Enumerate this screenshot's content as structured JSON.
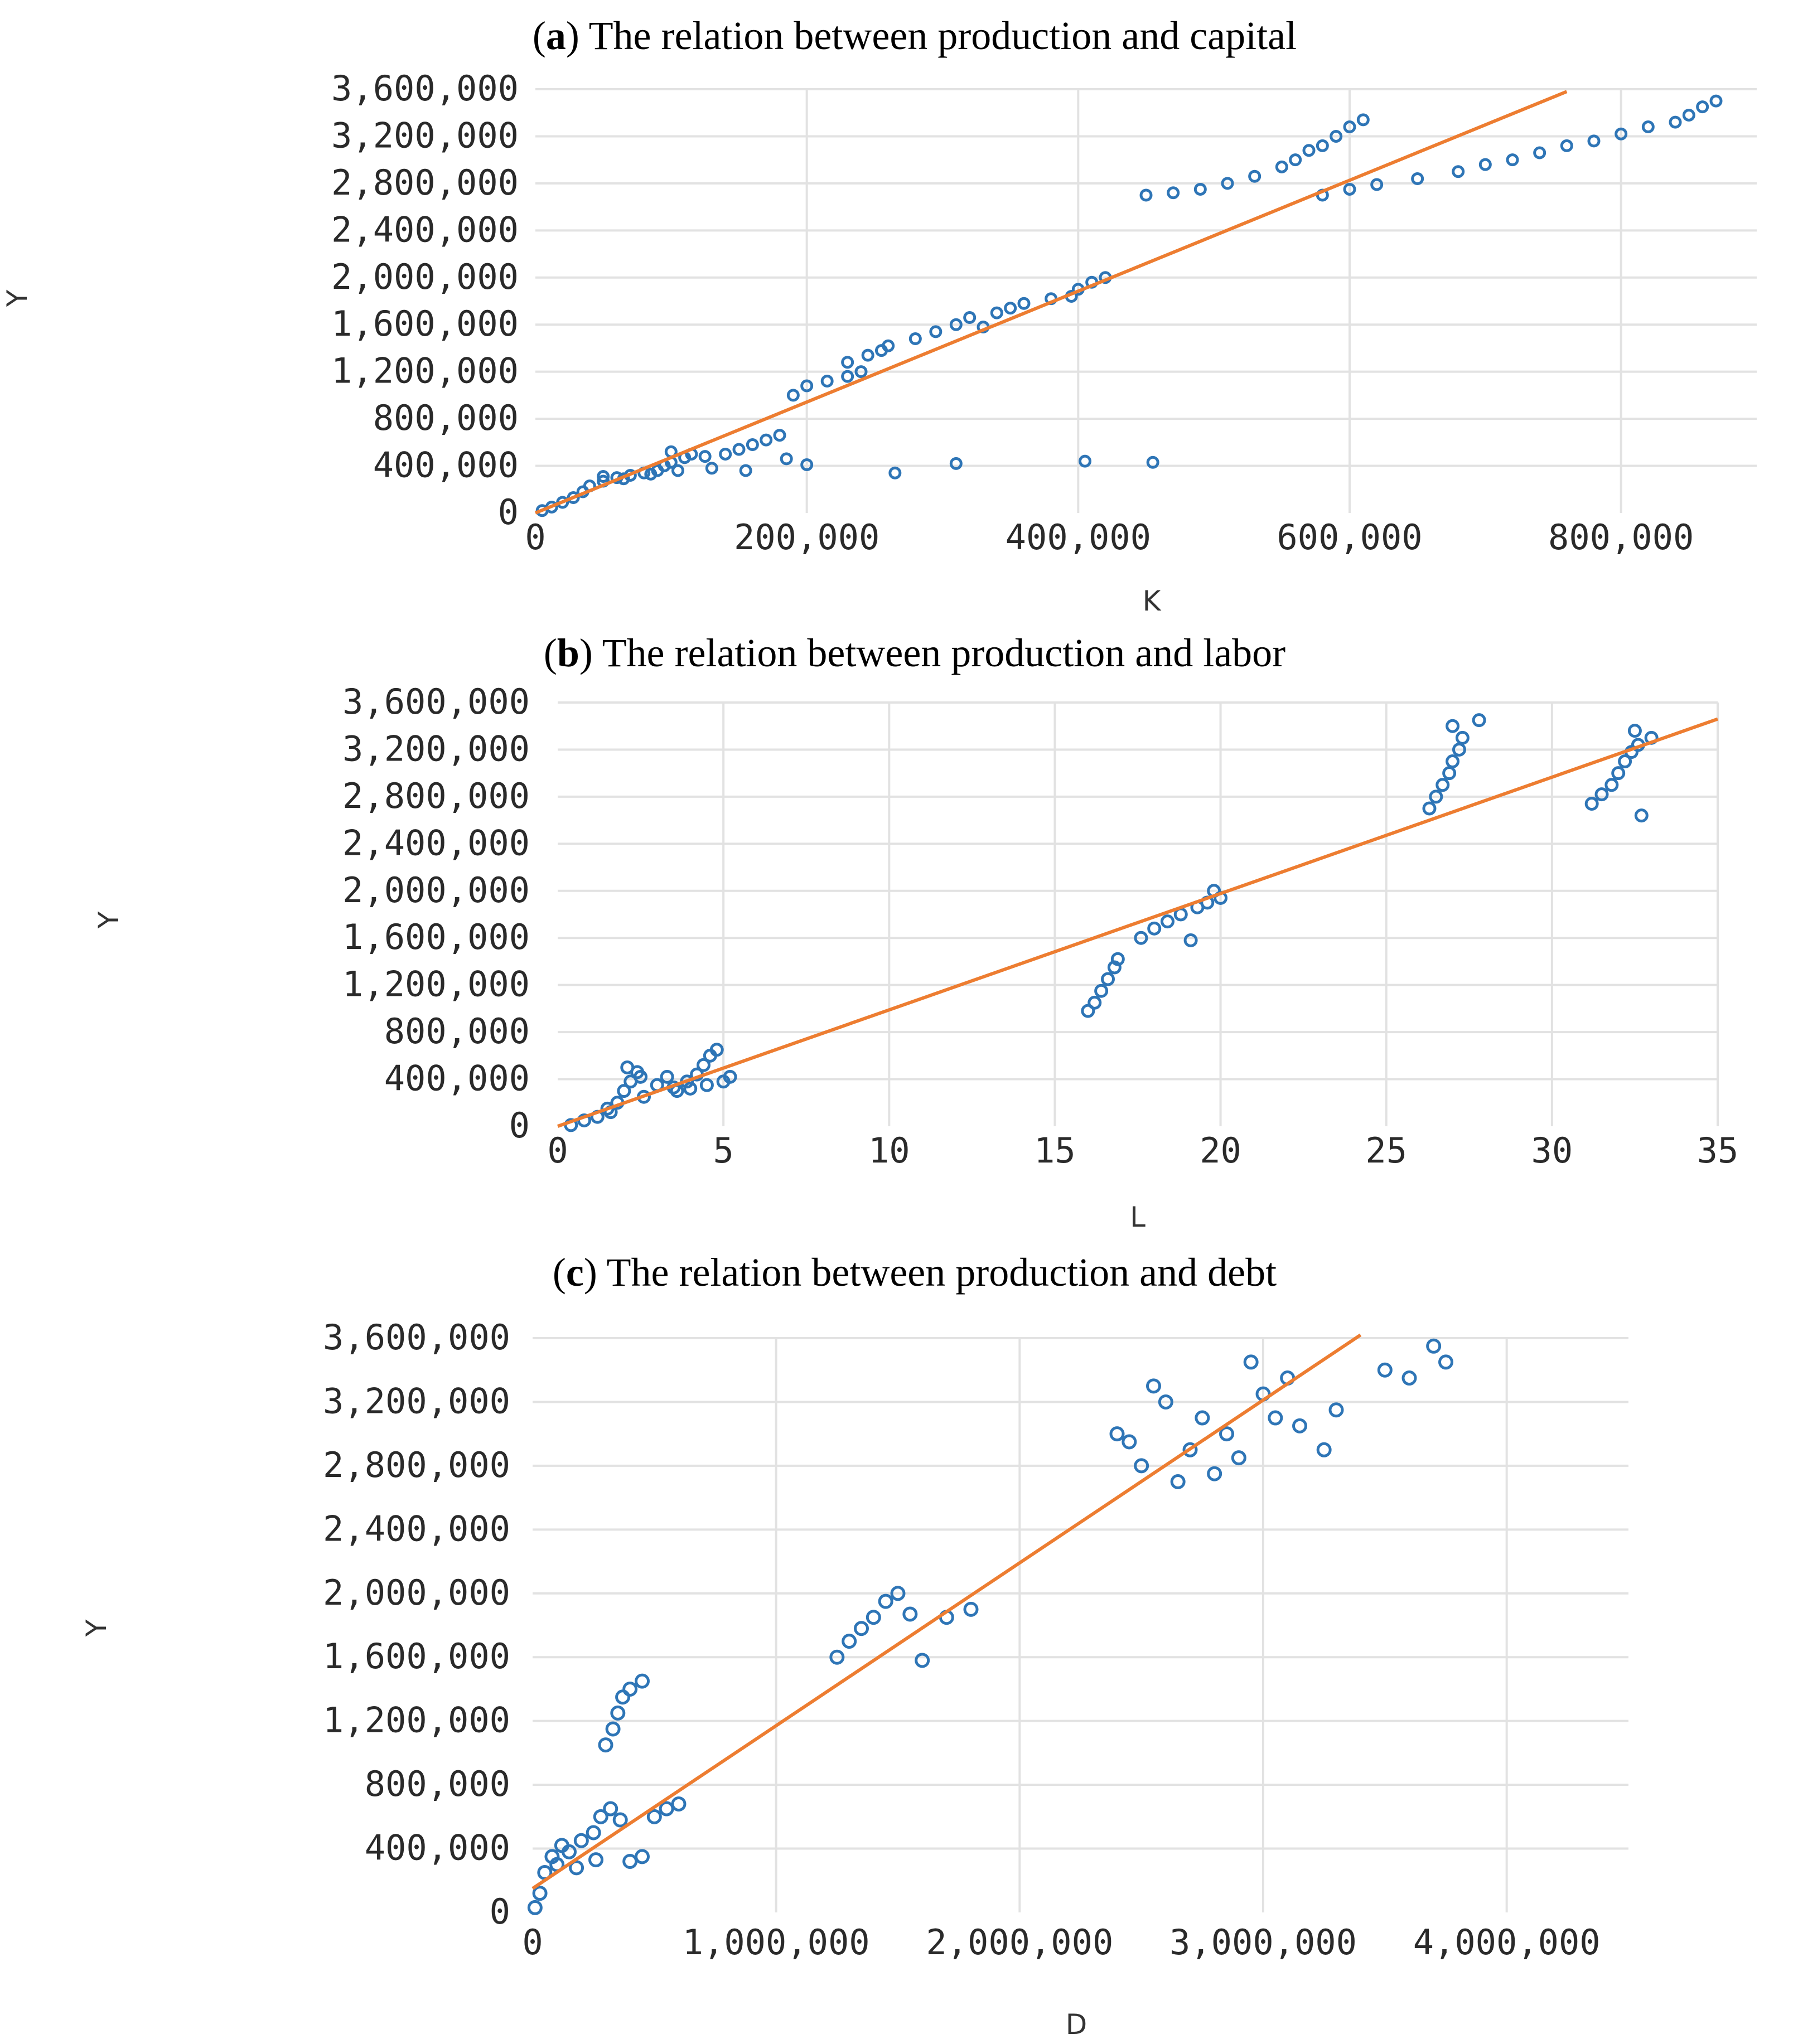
{
  "chart_data": [
    {
      "type": "scatter",
      "title_tag": "a",
      "title_text": "The relation between production and capital",
      "xlabel": "K",
      "ylabel": "Y",
      "xlim": [
        0,
        900000
      ],
      "ylim": [
        0,
        3600000
      ],
      "xticks": [
        0,
        200000,
        400000,
        600000,
        800000
      ],
      "xtick_labels": [
        "0",
        "200,000",
        "400,000",
        "600,000",
        "800,000"
      ],
      "yticks": [
        0,
        400000,
        800000,
        1200000,
        1600000,
        2000000,
        2400000,
        2800000,
        3200000,
        3600000
      ],
      "ytick_labels": [
        "0",
        "400,000",
        "800,000",
        "1,200,000",
        "1,600,000",
        "2,000,000",
        "2,400,000",
        "2,800,000",
        "3,200,000",
        "3,600,000"
      ],
      "grid": true,
      "series": [
        {
          "color": "#2e75b6",
          "marker": "open-circle",
          "points": [
            [
              5000,
              20000
            ],
            [
              12000,
              50000
            ],
            [
              20000,
              90000
            ],
            [
              28000,
              130000
            ],
            [
              35000,
              180000
            ],
            [
              40000,
              230000
            ],
            [
              50000,
              270000
            ],
            [
              60000,
              300000
            ],
            [
              70000,
              320000
            ],
            [
              80000,
              340000
            ],
            [
              90000,
              360000
            ],
            [
              95000,
              400000
            ],
            [
              100000,
              430000
            ],
            [
              110000,
              470000
            ],
            [
              115000,
              500000
            ],
            [
              100000,
              520000
            ],
            [
              125000,
              480000
            ],
            [
              140000,
              500000
            ],
            [
              150000,
              540000
            ],
            [
              160000,
              580000
            ],
            [
              170000,
              620000
            ],
            [
              180000,
              660000
            ],
            [
              50000,
              310000
            ],
            [
              65000,
              290000
            ],
            [
              85000,
              330000
            ],
            [
              105000,
              360000
            ],
            [
              130000,
              380000
            ],
            [
              155000,
              360000
            ],
            [
              185000,
              460000
            ],
            [
              200000,
              410000
            ],
            [
              265000,
              340000
            ],
            [
              310000,
              420000
            ],
            [
              405000,
              440000
            ],
            [
              455000,
              430000
            ],
            [
              190000,
              1000000
            ],
            [
              200000,
              1080000
            ],
            [
              215000,
              1120000
            ],
            [
              230000,
              1160000
            ],
            [
              240000,
              1200000
            ],
            [
              230000,
              1280000
            ],
            [
              245000,
              1340000
            ],
            [
              255000,
              1380000
            ],
            [
              260000,
              1420000
            ],
            [
              280000,
              1480000
            ],
            [
              295000,
              1540000
            ],
            [
              310000,
              1600000
            ],
            [
              320000,
              1660000
            ],
            [
              340000,
              1700000
            ],
            [
              350000,
              1740000
            ],
            [
              360000,
              1780000
            ],
            [
              380000,
              1820000
            ],
            [
              395000,
              1840000
            ],
            [
              400000,
              1900000
            ],
            [
              410000,
              1960000
            ],
            [
              420000,
              2000000
            ],
            [
              330000,
              1580000
            ],
            [
              450000,
              2700000
            ],
            [
              470000,
              2720000
            ],
            [
              490000,
              2750000
            ],
            [
              510000,
              2800000
            ],
            [
              530000,
              2860000
            ],
            [
              550000,
              2940000
            ],
            [
              560000,
              3000000
            ],
            [
              570000,
              3080000
            ],
            [
              580000,
              3120000
            ],
            [
              590000,
              3200000
            ],
            [
              600000,
              3280000
            ],
            [
              610000,
              3340000
            ],
            [
              580000,
              2700000
            ],
            [
              600000,
              2750000
            ],
            [
              620000,
              2790000
            ],
            [
              650000,
              2840000
            ],
            [
              680000,
              2900000
            ],
            [
              700000,
              2960000
            ],
            [
              720000,
              3000000
            ],
            [
              740000,
              3060000
            ],
            [
              760000,
              3120000
            ],
            [
              780000,
              3160000
            ],
            [
              800000,
              3220000
            ],
            [
              820000,
              3280000
            ],
            [
              840000,
              3320000
            ],
            [
              850000,
              3380000
            ],
            [
              860000,
              3450000
            ],
            [
              870000,
              3500000
            ]
          ]
        },
        {
          "color": "#ed7d31",
          "type": "line",
          "points": [
            [
              0,
              0
            ],
            [
              760000,
              3580000
            ]
          ]
        }
      ]
    },
    {
      "type": "scatter",
      "title_tag": "b",
      "title_text": "The relation between production and labor",
      "xlabel": "L",
      "ylabel": "Y",
      "xlim": [
        0,
        35
      ],
      "ylim": [
        0,
        3600000
      ],
      "xticks": [
        0,
        5,
        10,
        15,
        20,
        25,
        30,
        35
      ],
      "xtick_labels": [
        "0",
        "5",
        "10",
        "15",
        "20",
        "25",
        "30",
        "35"
      ],
      "yticks": [
        0,
        400000,
        800000,
        1200000,
        1600000,
        2000000,
        2400000,
        2800000,
        3200000,
        3600000
      ],
      "ytick_labels": [
        "0",
        "400,000",
        "800,000",
        "1,200,000",
        "1,600,000",
        "2,000,000",
        "2,400,000",
        "2,800,000",
        "3,200,000",
        "3,600,000"
      ],
      "grid": true,
      "series": [
        {
          "color": "#2e75b6",
          "marker": "open-circle",
          "points": [
            [
              0.4,
              10000
            ],
            [
              0.8,
              50000
            ],
            [
              1.2,
              80000
            ],
            [
              1.6,
              120000
            ],
            [
              1.8,
              200000
            ],
            [
              2.0,
              300000
            ],
            [
              2.2,
              380000
            ],
            [
              2.4,
              460000
            ],
            [
              2.1,
              500000
            ],
            [
              2.5,
              420000
            ],
            [
              3.0,
              350000
            ],
            [
              3.3,
              420000
            ],
            [
              3.6,
              300000
            ],
            [
              3.9,
              380000
            ],
            [
              4.2,
              440000
            ],
            [
              4.4,
              520000
            ],
            [
              4.6,
              600000
            ],
            [
              4.8,
              650000
            ],
            [
              5.0,
              380000
            ],
            [
              5.2,
              420000
            ],
            [
              3.5,
              330000
            ],
            [
              4.0,
              320000
            ],
            [
              4.5,
              350000
            ],
            [
              2.6,
              250000
            ],
            [
              1.5,
              150000
            ],
            [
              16.0,
              980000
            ],
            [
              16.2,
              1050000
            ],
            [
              16.4,
              1150000
            ],
            [
              16.6,
              1250000
            ],
            [
              16.8,
              1350000
            ],
            [
              16.9,
              1420000
            ],
            [
              17.6,
              1600000
            ],
            [
              18.0,
              1680000
            ],
            [
              18.4,
              1740000
            ],
            [
              18.8,
              1800000
            ],
            [
              19.1,
              1580000
            ],
            [
              19.3,
              1860000
            ],
            [
              19.6,
              1900000
            ],
            [
              19.8,
              2000000
            ],
            [
              20.0,
              1940000
            ],
            [
              26.3,
              2700000
            ],
            [
              26.5,
              2800000
            ],
            [
              26.7,
              2900000
            ],
            [
              26.9,
              3000000
            ],
            [
              27.0,
              3100000
            ],
            [
              27.2,
              3200000
            ],
            [
              27.3,
              3300000
            ],
            [
              27.0,
              3400000
            ],
            [
              27.8,
              3450000
            ],
            [
              31.2,
              2740000
            ],
            [
              31.5,
              2820000
            ],
            [
              31.8,
              2900000
            ],
            [
              32.0,
              3000000
            ],
            [
              32.2,
              3100000
            ],
            [
              32.4,
              3180000
            ],
            [
              32.6,
              3240000
            ],
            [
              32.5,
              3360000
            ],
            [
              32.7,
              2640000
            ],
            [
              33.0,
              3300000
            ]
          ]
        },
        {
          "color": "#ed7d31",
          "type": "line",
          "points": [
            [
              0,
              0
            ],
            [
              35,
              3460000
            ]
          ]
        }
      ]
    },
    {
      "type": "scatter",
      "title_tag": "c",
      "title_text": "The relation between production and debt",
      "xlabel": "D",
      "ylabel": "Y",
      "xlim": [
        0,
        4500000
      ],
      "ylim": [
        0,
        3600000
      ],
      "xticks": [
        0,
        1000000,
        2000000,
        3000000,
        4000000
      ],
      "xtick_labels": [
        "0",
        "1,000,000",
        "2,000,000",
        "3,000,000",
        "4,000,000"
      ],
      "yticks": [
        0,
        400000,
        800000,
        1200000,
        1600000,
        2000000,
        2400000,
        2800000,
        3200000,
        3600000
      ],
      "ytick_labels": [
        "0",
        "400,000",
        "800,000",
        "1,200,000",
        "1,600,000",
        "2,000,000",
        "2,400,000",
        "2,800,000",
        "3,200,000",
        "3,600,000"
      ],
      "grid": true,
      "series": [
        {
          "color": "#2e75b6",
          "marker": "open-circle",
          "points": [
            [
              10000,
              30000
            ],
            [
              30000,
              120000
            ],
            [
              50000,
              250000
            ],
            [
              80000,
              350000
            ],
            [
              120000,
              420000
            ],
            [
              150000,
              380000
            ],
            [
              200000,
              450000
            ],
            [
              250000,
              500000
            ],
            [
              280000,
              600000
            ],
            [
              320000,
              650000
            ],
            [
              360000,
              580000
            ],
            [
              400000,
              320000
            ],
            [
              450000,
              350000
            ],
            [
              500000,
              600000
            ],
            [
              550000,
              650000
            ],
            [
              600000,
              680000
            ],
            [
              100000,
              300000
            ],
            [
              180000,
              280000
            ],
            [
              260000,
              330000
            ],
            [
              300000,
              1050000
            ],
            [
              330000,
              1150000
            ],
            [
              350000,
              1250000
            ],
            [
              370000,
              1350000
            ],
            [
              400000,
              1400000
            ],
            [
              450000,
              1450000
            ],
            [
              1250000,
              1600000
            ],
            [
              1300000,
              1700000
            ],
            [
              1350000,
              1780000
            ],
            [
              1400000,
              1850000
            ],
            [
              1450000,
              1950000
            ],
            [
              1500000,
              2000000
            ],
            [
              1550000,
              1870000
            ],
            [
              1600000,
              1580000
            ],
            [
              1700000,
              1850000
            ],
            [
              1800000,
              1900000
            ],
            [
              2400000,
              3000000
            ],
            [
              2450000,
              2950000
            ],
            [
              2500000,
              2800000
            ],
            [
              2550000,
              3300000
            ],
            [
              2600000,
              3200000
            ],
            [
              2650000,
              2700000
            ],
            [
              2700000,
              2900000
            ],
            [
              2750000,
              3100000
            ],
            [
              2800000,
              2750000
            ],
            [
              2850000,
              3000000
            ],
            [
              2900000,
              2850000
            ],
            [
              2950000,
              3450000
            ],
            [
              3000000,
              3250000
            ],
            [
              3050000,
              3100000
            ],
            [
              3100000,
              3350000
            ],
            [
              3150000,
              3050000
            ],
            [
              3250000,
              2900000
            ],
            [
              3300000,
              3150000
            ],
            [
              3500000,
              3400000
            ],
            [
              3600000,
              3350000
            ],
            [
              3700000,
              3550000
            ],
            [
              3750000,
              3450000
            ]
          ]
        },
        {
          "color": "#ed7d31",
          "type": "line",
          "points": [
            [
              0,
              150000
            ],
            [
              3400000,
              3620000
            ]
          ]
        }
      ]
    }
  ]
}
